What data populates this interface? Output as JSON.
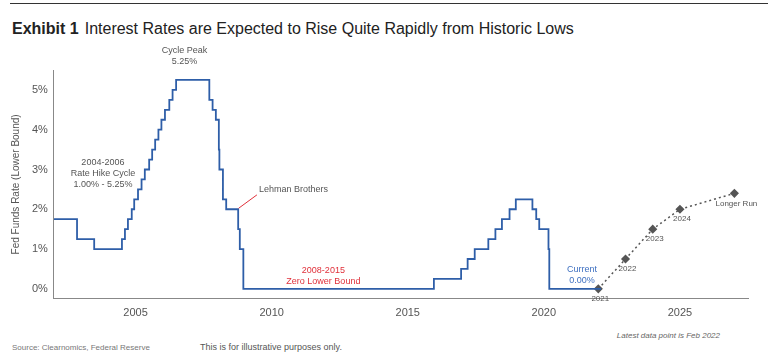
{
  "chart_data": {
    "type": "line",
    "title_label": "Exhibit 1",
    "title": "Interest Rates are Expected to Rise Quite Rapidly from Historic Lows",
    "y_label": "Fed Funds Rate (Lower Bound)",
    "source": "Source: Clearnomics, Federal Reserve",
    "note": "This is for illustrative purposes only.",
    "data_note": "Latest data point is Feb 2022",
    "xlim": [
      2002,
      2027.5
    ],
    "xticks": [
      2005,
      2010,
      2015,
      2020,
      2025
    ],
    "ylim": [
      -0.25,
      5.5
    ],
    "yticks": [
      {
        "value": 0,
        "label": "0%"
      },
      {
        "value": 1,
        "label": "1%"
      },
      {
        "value": 2,
        "label": "2%"
      },
      {
        "value": 3,
        "label": "3%"
      },
      {
        "value": 4,
        "label": "4%"
      },
      {
        "value": 5,
        "label": "5%"
      }
    ],
    "grid": false,
    "series": [
      {
        "type": "step",
        "color": "#2e5ea8",
        "line_style": "solid",
        "marker": "none",
        "x": [
          2002.0,
          2002.85,
          2003.48,
          2004.5,
          2004.61,
          2004.72,
          2004.86,
          2004.95,
          2005.09,
          2005.22,
          2005.34,
          2005.5,
          2005.61,
          2005.72,
          2005.84,
          2005.95,
          2006.08,
          2006.24,
          2006.36,
          2006.49,
          2007.71,
          2007.83,
          2007.95,
          2008.06,
          2008.08,
          2008.21,
          2008.33,
          2008.77,
          2008.83,
          2008.96,
          2015.96,
          2016.96,
          2017.2,
          2017.46,
          2017.96,
          2018.22,
          2018.46,
          2018.74,
          2018.97,
          2019.58,
          2019.72,
          2019.83,
          2020.17,
          2020.2,
          2022.1
        ],
        "values": [
          1.75,
          1.25,
          1.0,
          1.25,
          1.5,
          1.75,
          2.0,
          2.25,
          2.5,
          2.75,
          3.0,
          3.25,
          3.5,
          3.75,
          4.0,
          4.25,
          4.5,
          4.75,
          5.0,
          5.25,
          4.75,
          4.5,
          4.25,
          3.5,
          3.0,
          2.25,
          2.0,
          1.5,
          1.0,
          0.0,
          0.25,
          0.5,
          0.75,
          1.0,
          1.25,
          1.5,
          1.75,
          2.0,
          2.25,
          2.0,
          1.75,
          1.5,
          1.0,
          0.0,
          0.0
        ]
      },
      {
        "type": "line",
        "color": "#555555",
        "line_style": "dotted",
        "marker": "diamond",
        "x": [
          2022.0,
          2023.0,
          2024.0,
          2025.0,
          2027.0
        ],
        "values": [
          0.0,
          0.75,
          1.5,
          2.0,
          2.4
        ],
        "labels": [
          "2021",
          "2022",
          "2023",
          "2024",
          "Longer Run"
        ]
      }
    ],
    "annotations": [
      {
        "text": [
          "Cycle Peak",
          "5.25%"
        ],
        "x": 2006.8,
        "y": 5.85,
        "color": "#555555"
      },
      {
        "text": [
          "2004-2006",
          "Rate Hike Cycle",
          "1.00% - 5.25%"
        ],
        "x": 2003.8,
        "y": 2.9,
        "color": "#555555"
      },
      {
        "text": [
          "Lehman Brothers"
        ],
        "x": 2010.8,
        "y": 2.5,
        "color": "#555555",
        "arrow_to": [
          2008.75,
          2.0
        ]
      },
      {
        "text": [
          "2008-2015",
          "Zero Lower Bound"
        ],
        "x": 2011.9,
        "y": 0.32,
        "color": "#e0303a"
      },
      {
        "text": [
          "Current",
          "0.00%"
        ],
        "x": 2021.4,
        "y": 0.35,
        "color": "#3d6fc0"
      }
    ]
  }
}
